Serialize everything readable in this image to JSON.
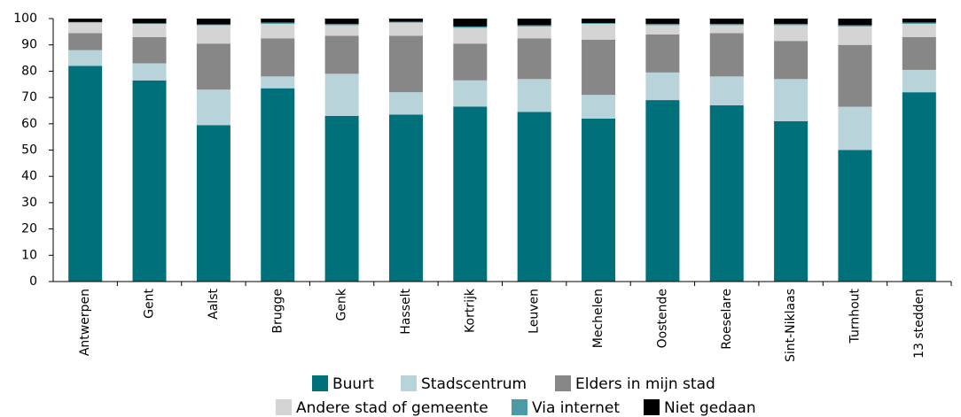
{
  "chart_data": {
    "type": "stacked_bar",
    "categories": [
      "Antwerpen",
      "Gent",
      "Aalst",
      "Brugge",
      "Genk",
      "Hasselt",
      "Kortrijk",
      "Leuven",
      "Mechelen",
      "Oostende",
      "Roeselare",
      "Sint-Niklaas",
      "Turnhout",
      "13 stedden"
    ],
    "series": [
      {
        "name": "Buurt",
        "color": "#00707a",
        "values": [
          82,
          76.5,
          59.5,
          73.5,
          63,
          63.5,
          66.5,
          64.5,
          62,
          69,
          67,
          61,
          50,
          72
        ]
      },
      {
        "name": "Stadscentrum",
        "color": "#b8d3da",
        "values": [
          6,
          6.5,
          13.5,
          4.5,
          16,
          8.5,
          10,
          12.5,
          9,
          10.5,
          11,
          16,
          16.5,
          8.5
        ]
      },
      {
        "name": "Elders in mijn stad",
        "color": "#878787",
        "values": [
          6.5,
          10,
          17.5,
          14.5,
          14.5,
          21.5,
          14,
          15.5,
          21,
          14.5,
          16.5,
          14.5,
          23.5,
          12.5
        ]
      },
      {
        "name": "Andere stad of gemeente",
        "color": "#d4d4d4",
        "values": [
          4,
          5,
          7,
          5.5,
          4,
          5,
          6,
          4.5,
          6,
          3.5,
          3,
          6,
          7,
          5
        ]
      },
      {
        "name": "Via internet",
        "color": "#4c9aa5",
        "values": [
          0.2,
          0.2,
          0.3,
          0.5,
          0.5,
          0.3,
          0.5,
          0.5,
          0.3,
          0.5,
          0.5,
          0.5,
          0.5,
          0.5
        ]
      },
      {
        "name": "Niet gedaan",
        "color": "#000000",
        "values": [
          1.3,
          1.8,
          2.2,
          1.5,
          2,
          1.2,
          3,
          2.5,
          1.7,
          2,
          2,
          2,
          2.5,
          1.5
        ]
      }
    ],
    "ylim": [
      0,
      100
    ],
    "yticks": [
      0,
      10,
      20,
      30,
      40,
      50,
      60,
      70,
      80,
      90,
      100
    ],
    "legend": "bottom"
  }
}
